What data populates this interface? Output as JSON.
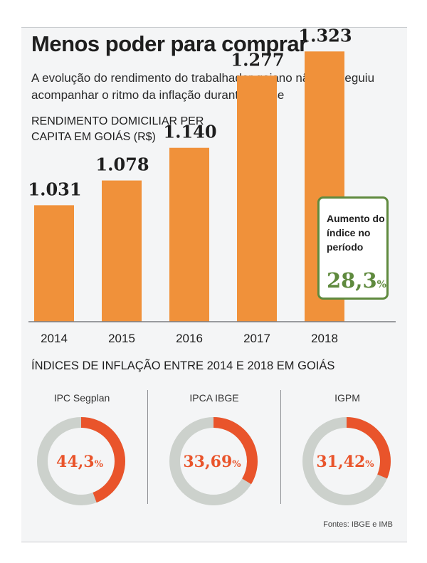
{
  "header": {
    "title": "Menos poder para comprar",
    "subtitle": "A evolução do rendimento do trabalhador goiano não conseguiu acompanhar o ritmo da inflação durante a crise"
  },
  "income_section": {
    "label": "RENDIMENTO DOMICILIAR PER CAPITA EM GOIÁS (R$)"
  },
  "callout": {
    "label": "Aumento do índice no período",
    "value": "28,3",
    "unit": "%"
  },
  "inflation_section": {
    "label": "ÍNDICES DE INFLAÇÃO ENTRE 2014 E 2018 EM GOIÁS",
    "donuts": [
      {
        "title": "IPC Segplan",
        "value_text": "44,3",
        "unit": "%"
      },
      {
        "title": "IPCA IBGE",
        "value_text": "33,69",
        "unit": "%"
      },
      {
        "title": "IGPM",
        "value_text": "31,42",
        "unit": "%"
      }
    ]
  },
  "footer": {
    "source": "Fontes: IBGE e IMB"
  },
  "colors": {
    "bar": "#f0913a",
    "donut_highlight": "#e9542b",
    "donut_track": "#ccd1cc",
    "callout_green": "#5f8a3e"
  },
  "chart_data": [
    {
      "type": "bar",
      "title": "RENDIMENTO DOMICILIAR PER CAPITA EM GOIÁS (R$)",
      "categories": [
        "2014",
        "2015",
        "2016",
        "2017",
        "2018"
      ],
      "values": [
        1031,
        1078,
        1140,
        1277,
        1323
      ],
      "value_labels": [
        "1.031",
        "1.078",
        "1.140",
        "1.277",
        "1.323"
      ],
      "xlabel": "",
      "ylabel": "",
      "grid": false
    },
    {
      "type": "pie",
      "title": "ÍNDICES DE INFLAÇÃO ENTRE 2014 E 2018 EM GOIÁS",
      "categories": [
        "IPC Segplan",
        "IPCA IBGE",
        "IGPM"
      ],
      "values": [
        44.3,
        33.69,
        31.42
      ]
    }
  ]
}
